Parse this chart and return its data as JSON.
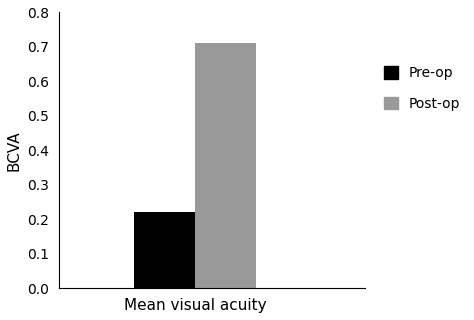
{
  "categories": [
    "Pre-op",
    "Post-op"
  ],
  "values": [
    0.22,
    0.71
  ],
  "bar_colors": [
    "#000000",
    "#999999"
  ],
  "xlabel": "Mean visual acuity",
  "ylabel": "BCVA",
  "ylim": [
    0,
    0.8
  ],
  "yticks": [
    0,
    0.1,
    0.2,
    0.3,
    0.4,
    0.5,
    0.6,
    0.7,
    0.8
  ],
  "legend_labels": [
    "Pre-op",
    "Post-op"
  ],
  "legend_colors": [
    "#000000",
    "#999999"
  ],
  "bar_width": 0.18,
  "background_color": "#ffffff",
  "xlabel_fontsize": 11,
  "ylabel_fontsize": 11,
  "tick_fontsize": 10
}
